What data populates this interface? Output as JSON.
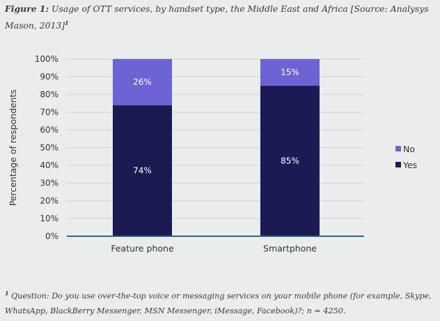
{
  "caption": {
    "label": "Figure 1:",
    "text": " Usage of OTT services, by handset type, the Middle East and Africa [Source: Analysys Mason, 2013]",
    "sup": "1"
  },
  "footnote": {
    "sup": "1",
    "text": " Question: Do you use over-the-top voice or messaging services on your mobile phone (for example, Skype, WhatsApp, BlackBerry Messenger, MSN Messenger, iMessage, Facebook)?; n = 4250."
  },
  "chart_data": {
    "type": "bar",
    "stacked": true,
    "categories": [
      "Feature phone",
      "Smartphone"
    ],
    "series": [
      {
        "name": "Yes",
        "values": [
          74,
          85
        ],
        "labels": [
          "74%",
          "85%"
        ],
        "color": "#1c1a52"
      },
      {
        "name": "No",
        "values": [
          26,
          15
        ],
        "labels": [
          "26%",
          "15%"
        ],
        "color": "#6c64d4"
      }
    ],
    "xlabel": "",
    "ylabel": "Percentage of respondents",
    "ylim": [
      0,
      100
    ],
    "yticks": [
      "0%",
      "10%",
      "20%",
      "30%",
      "40%",
      "50%",
      "60%",
      "70%",
      "80%",
      "90%",
      "100%"
    ],
    "grid": true,
    "legend": {
      "position": "right",
      "entries": [
        {
          "name": "No",
          "color": "#6c64d4"
        },
        {
          "name": "Yes",
          "color": "#1c1a52"
        }
      ]
    },
    "axis_color": "#2b6a83"
  }
}
